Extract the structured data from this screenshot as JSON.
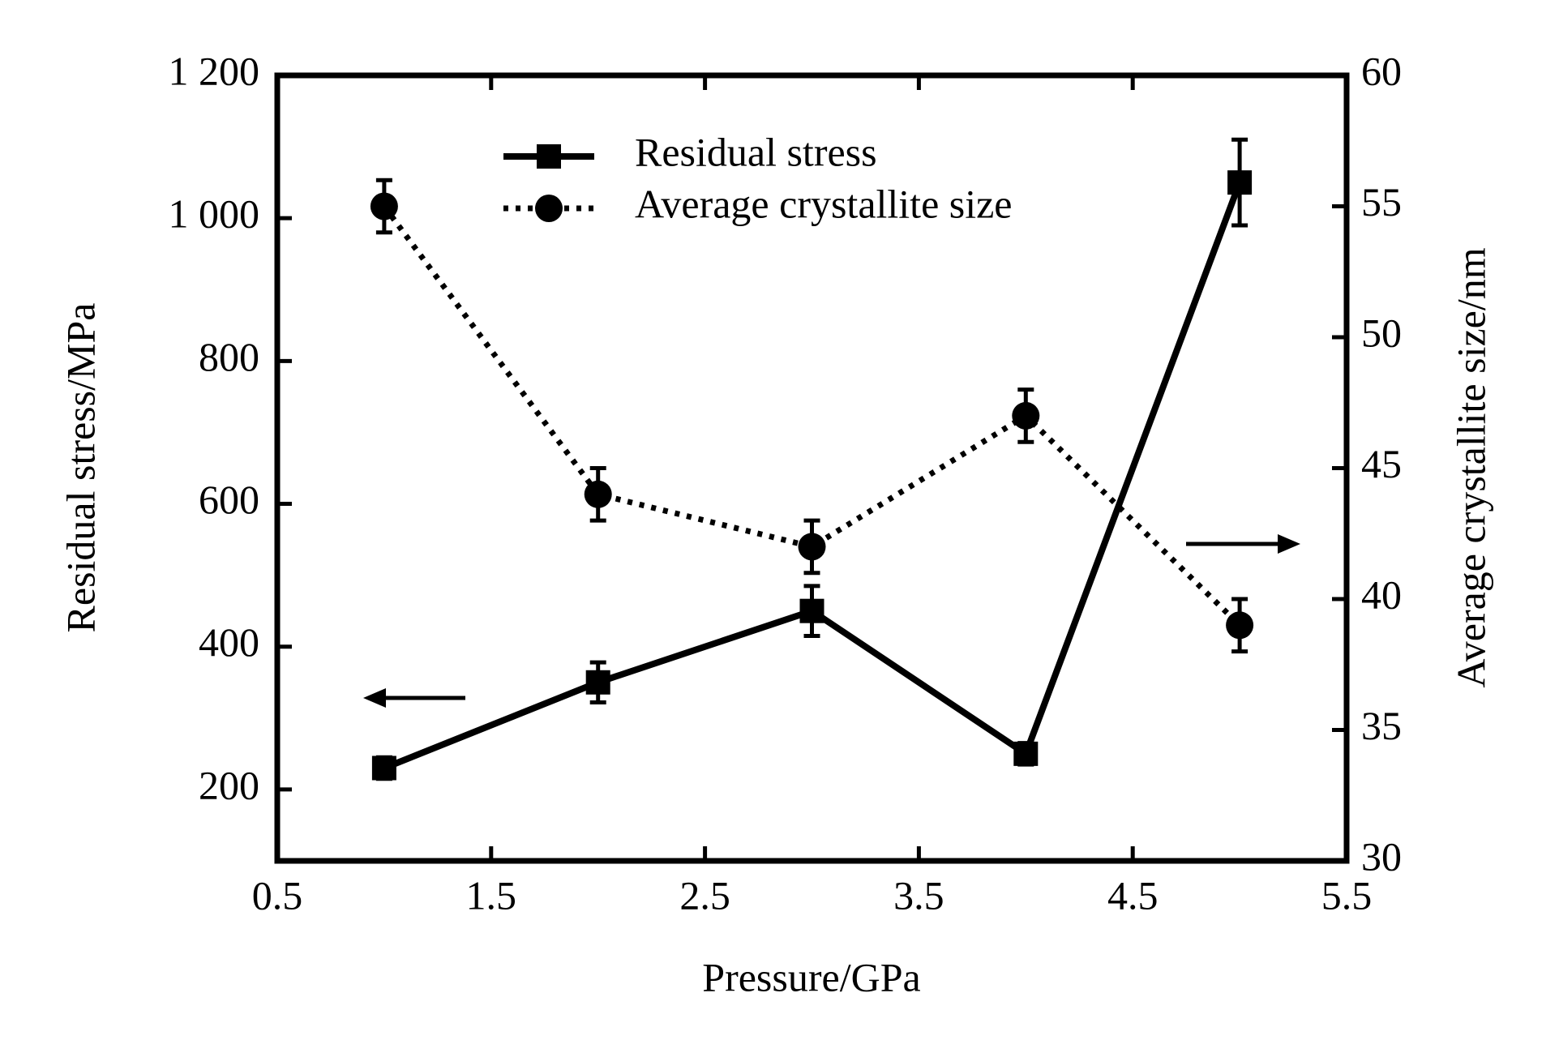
{
  "chart_data": {
    "type": "line",
    "x_label": "Pressure/GPa",
    "y_label": "Residual stress/MPa",
    "y2_label": "Average crystallite size/nm",
    "xlim": [
      0.5,
      5.5
    ],
    "xticks": [
      0.5,
      1.5,
      2.5,
      3.5,
      4.5,
      5.5
    ],
    "ylim": [
      100,
      1200
    ],
    "yticks": [
      200,
      400,
      600,
      800,
      {
        "value": 1000,
        "label": "1 000"
      },
      {
        "value": 1200,
        "label": "1 200"
      }
    ],
    "y2lim": [
      30,
      60
    ],
    "y2ticks": [
      30,
      35,
      40,
      45,
      50,
      55,
      60
    ],
    "series": [
      {
        "name": "Residual stress",
        "color": "#000000",
        "line_style": "solid",
        "marker": "square",
        "x": [
          1,
          2,
          3,
          4,
          5
        ],
        "values": [
          230,
          350,
          450,
          250,
          1050
        ],
        "errors": [
          15,
          28,
          35,
          15,
          60
        ]
      },
      {
        "name": "Average crystallite size",
        "color": "#000000",
        "line_style": "dotted",
        "marker": "circle",
        "axis": "y2",
        "x": [
          1,
          2,
          3,
          4,
          5
        ],
        "values": [
          55,
          44,
          42,
          47,
          39
        ],
        "errors": [
          1,
          1,
          1,
          1,
          1
        ]
      }
    ]
  }
}
